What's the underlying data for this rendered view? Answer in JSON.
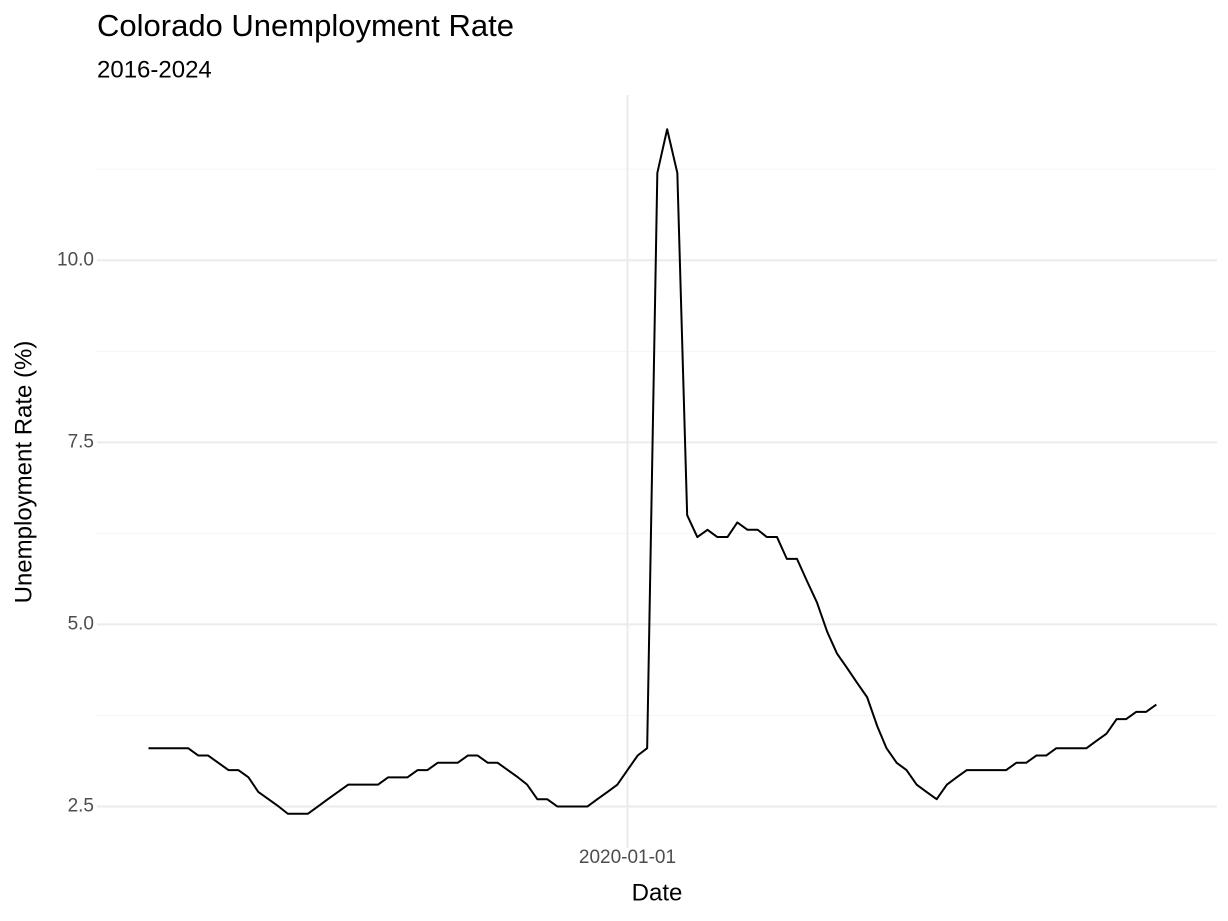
{
  "chart_data": {
    "type": "line",
    "title": "Colorado Unemployment Rate",
    "subtitle": "2016-2024",
    "x_label": "Date",
    "y_label": "Unemployment Rate (%)",
    "x": [
      "2016-01-01",
      "2016-02-01",
      "2016-03-01",
      "2016-04-01",
      "2016-05-01",
      "2016-06-01",
      "2016-07-01",
      "2016-08-01",
      "2016-09-01",
      "2016-10-01",
      "2016-11-01",
      "2016-12-01",
      "2017-01-01",
      "2017-02-01",
      "2017-03-01",
      "2017-04-01",
      "2017-05-01",
      "2017-06-01",
      "2017-07-01",
      "2017-08-01",
      "2017-09-01",
      "2017-10-01",
      "2017-11-01",
      "2017-12-01",
      "2018-01-01",
      "2018-02-01",
      "2018-03-01",
      "2018-04-01",
      "2018-05-01",
      "2018-06-01",
      "2018-07-01",
      "2018-08-01",
      "2018-09-01",
      "2018-10-01",
      "2018-11-01",
      "2018-12-01",
      "2019-01-01",
      "2019-02-01",
      "2019-03-01",
      "2019-04-01",
      "2019-05-01",
      "2019-06-01",
      "2019-07-01",
      "2019-08-01",
      "2019-09-01",
      "2019-10-01",
      "2019-11-01",
      "2019-12-01",
      "2020-01-01",
      "2020-02-01",
      "2020-03-01",
      "2020-04-01",
      "2020-05-01",
      "2020-06-01",
      "2020-07-01",
      "2020-08-01",
      "2020-09-01",
      "2020-10-01",
      "2020-11-01",
      "2020-12-01",
      "2021-01-01",
      "2021-02-01",
      "2021-03-01",
      "2021-04-01",
      "2021-05-01",
      "2021-06-01",
      "2021-07-01",
      "2021-08-01",
      "2021-09-01",
      "2021-10-01",
      "2021-11-01",
      "2021-12-01",
      "2022-01-01",
      "2022-02-01",
      "2022-03-01",
      "2022-04-01",
      "2022-05-01",
      "2022-06-01",
      "2022-07-01",
      "2022-08-01",
      "2022-09-01",
      "2022-10-01",
      "2022-11-01",
      "2022-12-01",
      "2023-01-01",
      "2023-02-01",
      "2023-03-01",
      "2023-04-01",
      "2023-05-01",
      "2023-06-01",
      "2023-07-01",
      "2023-08-01",
      "2023-09-01",
      "2023-10-01",
      "2023-11-01",
      "2023-12-01",
      "2024-01-01",
      "2024-02-01",
      "2024-03-01",
      "2024-04-01",
      "2024-05-01",
      "2024-06-01"
    ],
    "series": [
      {
        "name": "Unemployment Rate",
        "color": "#000000",
        "values": [
          3.3,
          3.3,
          3.3,
          3.3,
          3.3,
          3.2,
          3.2,
          3.1,
          3.0,
          3.0,
          2.9,
          2.7,
          2.6,
          2.5,
          2.4,
          2.4,
          2.4,
          2.5,
          2.6,
          2.7,
          2.8,
          2.8,
          2.8,
          2.8,
          2.9,
          2.9,
          2.9,
          3.0,
          3.0,
          3.1,
          3.1,
          3.1,
          3.2,
          3.2,
          3.1,
          3.1,
          3.0,
          2.9,
          2.8,
          2.6,
          2.6,
          2.5,
          2.5,
          2.5,
          2.5,
          2.6,
          2.7,
          2.8,
          3.0,
          3.2,
          3.3,
          11.2,
          11.8,
          11.2,
          6.5,
          6.2,
          6.3,
          6.2,
          6.2,
          6.4,
          6.3,
          6.3,
          6.2,
          6.2,
          5.9,
          5.9,
          5.6,
          5.3,
          4.9,
          4.6,
          4.4,
          4.2,
          4.0,
          3.6,
          3.3,
          3.1,
          3.0,
          2.8,
          2.7,
          2.6,
          2.8,
          2.9,
          3.0,
          3.0,
          3.0,
          3.0,
          3.0,
          3.1,
          3.1,
          3.2,
          3.2,
          3.3,
          3.3,
          3.3,
          3.3,
          3.4,
          3.5,
          3.7,
          3.7,
          3.8,
          3.8,
          3.9
        ]
      }
    ],
    "xlim": [
      "2015-07-28",
      "2024-12-03"
    ],
    "xticks": [
      "2020-01-01"
    ],
    "ylim": [
      1.93,
      12.27
    ],
    "yticks": [
      2.5,
      {
        "value": 5,
        "label": "5.0"
      },
      7.5,
      {
        "value": 10,
        "label": "10.0"
      }
    ],
    "grid": true
  }
}
